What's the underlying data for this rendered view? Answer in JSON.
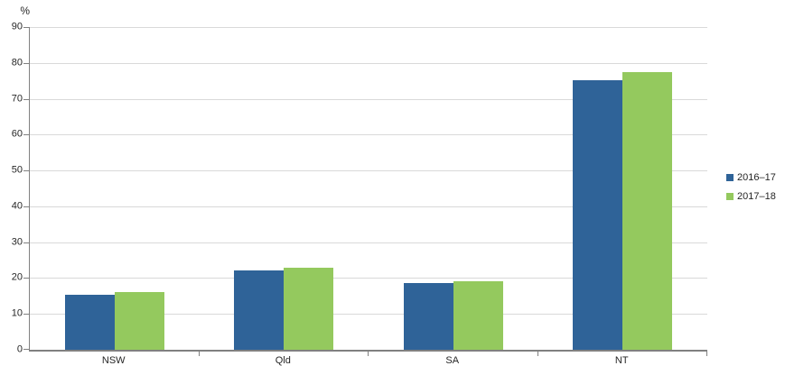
{
  "chart_data": {
    "type": "bar",
    "title": "",
    "ylabel": "%",
    "xlabel": "",
    "categories": [
      "NSW",
      "Qld",
      "SA",
      "NT"
    ],
    "series": [
      {
        "name": "2016–17",
        "color": "#2F6398",
        "values": [
          15.4,
          22.2,
          18.7,
          75.2
        ]
      },
      {
        "name": "2017–18",
        "color": "#94C95E",
        "values": [
          16.2,
          23.0,
          19.2,
          77.4
        ]
      }
    ],
    "ylim": [
      0,
      90
    ],
    "ytick_step": 10,
    "grid": true,
    "legend_position": "right",
    "colors": {
      "axis": "#808080",
      "gridline": "#D9D9D9",
      "text": "#262626"
    }
  }
}
